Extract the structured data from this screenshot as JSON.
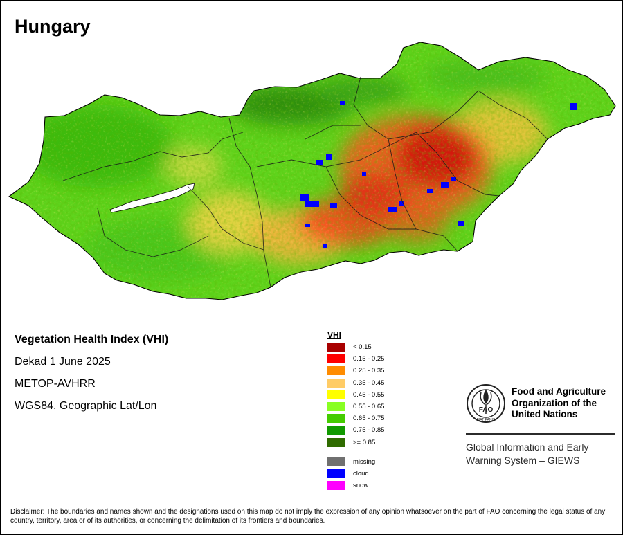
{
  "map": {
    "title": "Hungary"
  },
  "info": {
    "product": "Vegetation Health Index (VHI)",
    "period": "Dekad 1 June 2025",
    "sensor": "METOP-AVHRR",
    "projection": "WGS84, Geographic Lat/Lon"
  },
  "legend": {
    "title": "VHI",
    "classes": [
      {
        "label": "< 0.15",
        "color": "#a80000"
      },
      {
        "label": "0.15 - 0.25",
        "color": "#ff0000"
      },
      {
        "label": "0.25 - 0.35",
        "color": "#ff8c00"
      },
      {
        "label": "0.35 - 0.45",
        "color": "#ffcc66"
      },
      {
        "label": "0.45 - 0.55",
        "color": "#ffff00"
      },
      {
        "label": "0.55 - 0.65",
        "color": "#88ff22"
      },
      {
        "label": "0.65 - 0.75",
        "color": "#44cc00"
      },
      {
        "label": "0.75 - 0.85",
        "color": "#119a00"
      },
      {
        "label": ">= 0.85",
        "color": "#2f6b00"
      }
    ],
    "special": [
      {
        "label": "missing",
        "color": "#707070"
      },
      {
        "label": "cloud",
        "color": "#0000ff"
      },
      {
        "label": "snow",
        "color": "#ff00ff"
      }
    ]
  },
  "organization": {
    "logo_text": "FAO",
    "logo_motto": "FIAT PANIS",
    "name_lines": [
      "Food and Agriculture",
      "Organization of the",
      "United Nations"
    ],
    "system_lines": [
      "Global Information and Early",
      "Warning System – GIEWS"
    ]
  },
  "disclaimer": "Disclaimer: The boundaries and names shown and the designations used on this map do not imply the expression of any opinion whatsoever on the part of FAO concerning the legal status of any country, territory, area or of its authorities, or concerning the delimitation of its frontiers and boundaries."
}
